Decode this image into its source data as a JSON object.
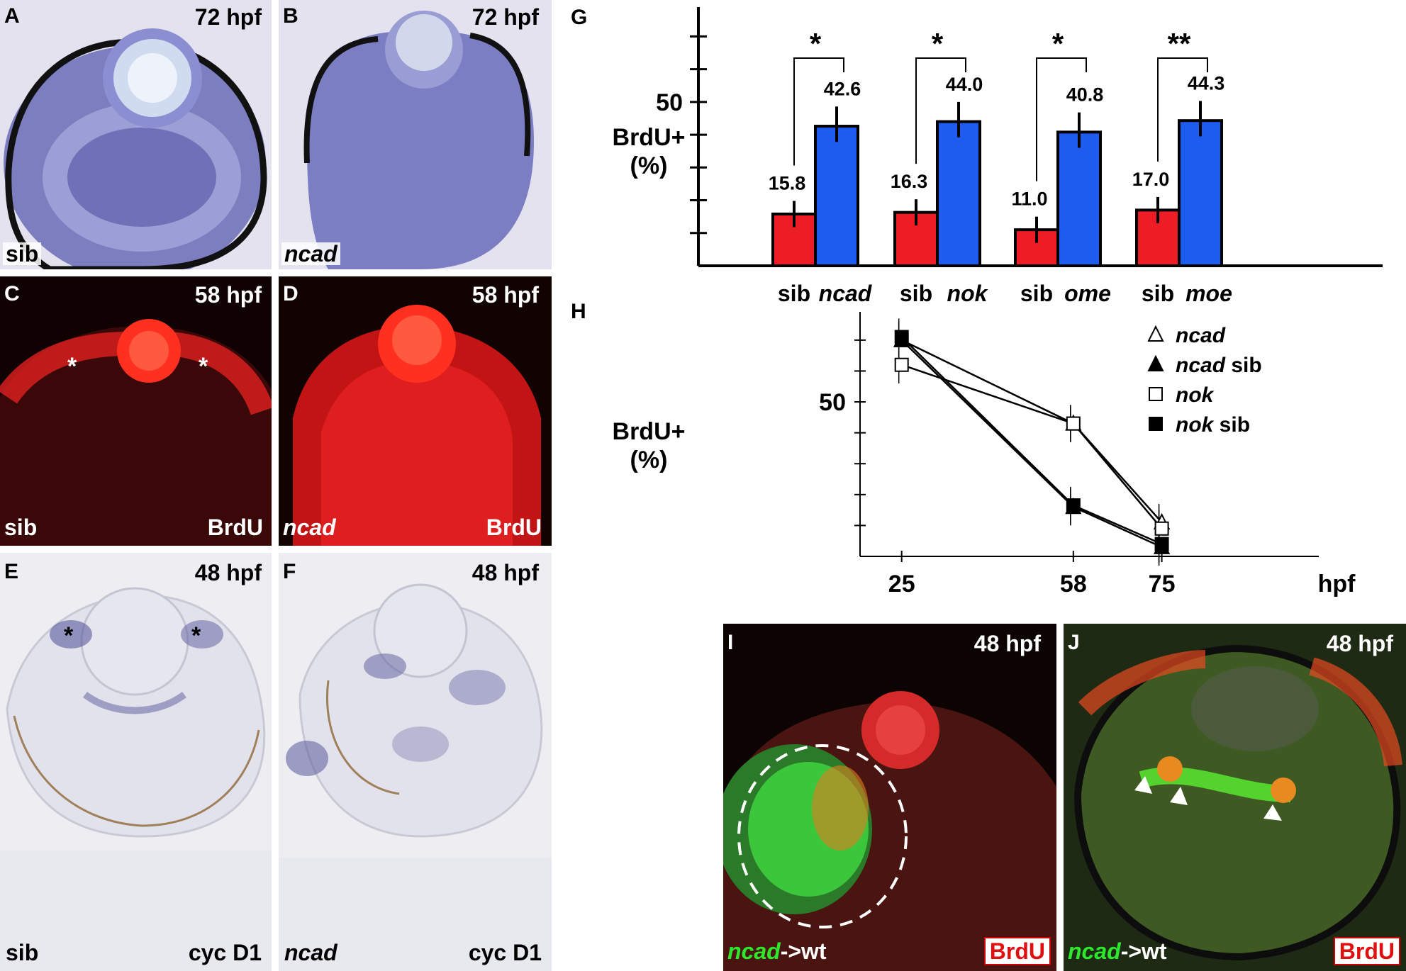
{
  "panels": {
    "A": {
      "letter": "A",
      "stage": "72 hpf",
      "genotype": "sib"
    },
    "B": {
      "letter": "B",
      "stage": "72 hpf",
      "genotype": "ncad"
    },
    "C": {
      "letter": "C",
      "stage": "58 hpf",
      "genotype": "sib",
      "stain": "BrdU",
      "marker": "*"
    },
    "D": {
      "letter": "D",
      "stage": "58 hpf",
      "genotype": "ncad",
      "stain": "BrdU"
    },
    "E": {
      "letter": "E",
      "stage": "48 hpf",
      "genotype": "sib",
      "stain": "cyc D1",
      "marker": "*"
    },
    "F": {
      "letter": "F",
      "stage": "48 hpf",
      "genotype": "ncad",
      "stain": "cyc D1"
    },
    "I": {
      "letter": "I",
      "stage": "48 hpf",
      "transplant_green": "ncad",
      "transplant_rest": "->wt",
      "stain": "BrdU"
    },
    "J": {
      "letter": "J",
      "stage": "48 hpf",
      "transplant_green": "ncad",
      "transplant_rest": "->wt",
      "stain": "BrdU"
    }
  },
  "chart_data": [
    {
      "panel": "G",
      "type": "bar",
      "ylabel_line1": "BrdU+",
      "ylabel_line2": "(%)",
      "ylim": [
        0,
        75
      ],
      "yticks_labeled": [
        50
      ],
      "groups": [
        {
          "sib_label": "sib",
          "mut_label": "ncad",
          "sib": 15.8,
          "mut": 42.6,
          "sib_label_value": "15.8",
          "mut_label_value": "42.6",
          "sig": "*"
        },
        {
          "sib_label": "sib",
          "mut_label": "nok",
          "sib": 16.3,
          "mut": 44.0,
          "sib_label_value": "16.3",
          "mut_label_value": "44.0",
          "sig": "*"
        },
        {
          "sib_label": "sib",
          "mut_label": "ome",
          "sib": 11.0,
          "mut": 40.8,
          "sib_label_value": "11.0",
          "mut_label_value": "40.8",
          "sig": "*"
        },
        {
          "sib_label": "sib",
          "mut_label": "moe",
          "sib": 17.0,
          "mut": 44.3,
          "sib_label_value": "17.0",
          "mut_label_value": "44.3",
          "sig": "**"
        }
      ],
      "colors": {
        "sib": "#ee1c24",
        "mut": "#1e5cf0"
      }
    },
    {
      "panel": "H",
      "type": "line",
      "ylabel_line1": "BrdU+",
      "ylabel_line2": "(%)",
      "xlabel": "hpf",
      "x": [
        25,
        58,
        75
      ],
      "ylim": [
        0,
        78
      ],
      "yticks_labeled": [
        50
      ],
      "series": [
        {
          "name": "ncad",
          "name_suffix": "",
          "marker": "open-triangle",
          "values": [
            70,
            43,
            11
          ]
        },
        {
          "name": "ncad",
          "name_suffix": " sib",
          "marker": "filled-triangle",
          "values": [
            70,
            16,
            3
          ]
        },
        {
          "name": "nok",
          "name_suffix": "",
          "marker": "open-square",
          "values": [
            62,
            43,
            9
          ]
        },
        {
          "name": "nok",
          "name_suffix": " sib",
          "marker": "filled-square",
          "values": [
            71,
            16.5,
            4
          ]
        }
      ]
    }
  ]
}
